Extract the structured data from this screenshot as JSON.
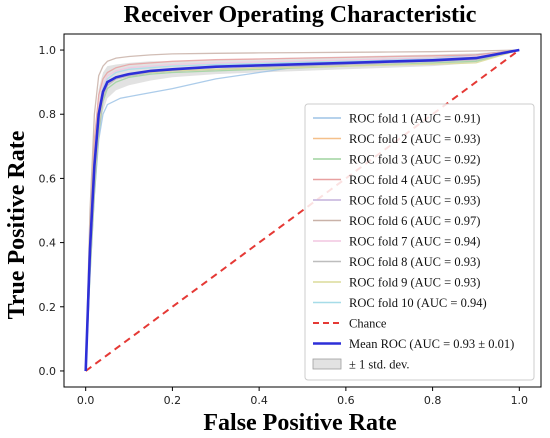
{
  "chart_data": {
    "type": "line",
    "title": "Receiver Operating Characteristic",
    "xlabel": "False Positive Rate",
    "ylabel": "True Positive Rate",
    "xlim": [
      -0.05,
      1.05
    ],
    "ylim": [
      -0.05,
      1.05
    ],
    "xticks": [
      "0.0",
      "0.2",
      "0.4",
      "0.6",
      "0.8",
      "1.0"
    ],
    "yticks": [
      "0.0",
      "0.2",
      "0.4",
      "0.6",
      "0.8",
      "1.0"
    ],
    "grid": false,
    "legend_position": "lower-right",
    "series": [
      {
        "name": "ROC fold 1 (AUC = 0.91)",
        "color": "#9ec3e6",
        "x": [
          0,
          0.01,
          0.02,
          0.03,
          0.04,
          0.05,
          0.08,
          0.12,
          0.2,
          0.3,
          0.4,
          0.5,
          0.6,
          0.7,
          0.8,
          0.9,
          1.0
        ],
        "y": [
          0,
          0.3,
          0.55,
          0.72,
          0.8,
          0.83,
          0.85,
          0.86,
          0.88,
          0.91,
          0.93,
          0.95,
          0.96,
          0.97,
          0.975,
          0.985,
          1.0
        ]
      },
      {
        "name": "ROC fold 2 (AUC = 0.93)",
        "color": "#f5c08a",
        "x": [
          0,
          0.01,
          0.02,
          0.03,
          0.04,
          0.05,
          0.07,
          0.1,
          0.15,
          0.2,
          0.3,
          0.4,
          0.5,
          0.6,
          0.7,
          0.8,
          0.9,
          1.0
        ],
        "y": [
          0,
          0.35,
          0.6,
          0.78,
          0.86,
          0.89,
          0.91,
          0.92,
          0.93,
          0.935,
          0.94,
          0.945,
          0.95,
          0.955,
          0.96,
          0.965,
          0.97,
          1.0
        ]
      },
      {
        "name": "ROC fold 3 (AUC = 0.92)",
        "color": "#9fd49f",
        "x": [
          0,
          0.01,
          0.02,
          0.03,
          0.04,
          0.05,
          0.07,
          0.1,
          0.15,
          0.2,
          0.3,
          0.4,
          0.5,
          0.6,
          0.7,
          0.8,
          0.9,
          1.0
        ],
        "y": [
          0,
          0.3,
          0.55,
          0.74,
          0.84,
          0.88,
          0.9,
          0.915,
          0.925,
          0.93,
          0.935,
          0.94,
          0.945,
          0.95,
          0.955,
          0.96,
          0.965,
          1.0
        ]
      },
      {
        "name": "ROC fold 4 (AUC = 0.95)",
        "color": "#e8a0a0",
        "x": [
          0,
          0.01,
          0.02,
          0.03,
          0.04,
          0.05,
          0.07,
          0.1,
          0.15,
          0.2,
          0.3,
          0.4,
          0.5,
          0.6,
          0.7,
          0.8,
          0.9,
          1.0
        ],
        "y": [
          0,
          0.45,
          0.72,
          0.86,
          0.91,
          0.93,
          0.945,
          0.955,
          0.96,
          0.965,
          0.97,
          0.972,
          0.975,
          0.977,
          0.98,
          0.982,
          0.985,
          1.0
        ]
      },
      {
        "name": "ROC fold 5 (AUC = 0.93)",
        "color": "#c4b1dc",
        "x": [
          0,
          0.01,
          0.02,
          0.03,
          0.04,
          0.05,
          0.07,
          0.1,
          0.15,
          0.2,
          0.3,
          0.4,
          0.5,
          0.6,
          0.7,
          0.8,
          0.9,
          1.0
        ],
        "y": [
          0,
          0.33,
          0.58,
          0.76,
          0.85,
          0.89,
          0.91,
          0.92,
          0.93,
          0.935,
          0.94,
          0.945,
          0.95,
          0.955,
          0.96,
          0.965,
          0.97,
          1.0
        ]
      },
      {
        "name": "ROC fold 6 (AUC = 0.97)",
        "color": "#c9b2a8",
        "x": [
          0,
          0.01,
          0.02,
          0.03,
          0.04,
          0.05,
          0.07,
          0.1,
          0.15,
          0.2,
          0.3,
          0.4,
          0.5,
          0.6,
          0.7,
          0.8,
          0.9,
          1.0
        ],
        "y": [
          0,
          0.5,
          0.8,
          0.92,
          0.95,
          0.965,
          0.975,
          0.98,
          0.985,
          0.988,
          0.99,
          0.991,
          0.992,
          0.993,
          0.994,
          0.995,
          0.997,
          1.0
        ]
      },
      {
        "name": "ROC fold 7 (AUC = 0.94)",
        "color": "#f2c6e0",
        "x": [
          0,
          0.01,
          0.02,
          0.03,
          0.04,
          0.05,
          0.07,
          0.1,
          0.15,
          0.2,
          0.3,
          0.4,
          0.5,
          0.6,
          0.7,
          0.8,
          0.9,
          1.0
        ],
        "y": [
          0,
          0.4,
          0.66,
          0.82,
          0.89,
          0.92,
          0.935,
          0.945,
          0.95,
          0.955,
          0.96,
          0.963,
          0.966,
          0.969,
          0.972,
          0.975,
          0.98,
          1.0
        ]
      },
      {
        "name": "ROC fold 8 (AUC = 0.93)",
        "color": "#bdbdbd",
        "x": [
          0,
          0.01,
          0.02,
          0.03,
          0.04,
          0.05,
          0.07,
          0.1,
          0.15,
          0.2,
          0.3,
          0.4,
          0.5,
          0.6,
          0.7,
          0.8,
          0.9,
          1.0
        ],
        "y": [
          0,
          0.32,
          0.57,
          0.75,
          0.85,
          0.89,
          0.91,
          0.92,
          0.93,
          0.935,
          0.94,
          0.945,
          0.95,
          0.955,
          0.96,
          0.965,
          0.97,
          1.0
        ]
      },
      {
        "name": "ROC fold 9 (AUC = 0.93)",
        "color": "#dcdc9a",
        "x": [
          0,
          0.01,
          0.02,
          0.03,
          0.04,
          0.05,
          0.07,
          0.1,
          0.15,
          0.2,
          0.3,
          0.4,
          0.5,
          0.6,
          0.7,
          0.8,
          0.9,
          1.0
        ],
        "y": [
          0,
          0.34,
          0.6,
          0.77,
          0.86,
          0.9,
          0.915,
          0.925,
          0.93,
          0.935,
          0.94,
          0.943,
          0.946,
          0.95,
          0.953,
          0.956,
          0.96,
          1.0
        ]
      },
      {
        "name": "ROC fold 10 (AUC = 0.94)",
        "color": "#a6dce8",
        "x": [
          0,
          0.01,
          0.02,
          0.03,
          0.04,
          0.05,
          0.07,
          0.1,
          0.15,
          0.2,
          0.3,
          0.4,
          0.5,
          0.6,
          0.7,
          0.8,
          0.9,
          1.0
        ],
        "y": [
          0,
          0.38,
          0.64,
          0.8,
          0.88,
          0.91,
          0.93,
          0.94,
          0.945,
          0.95,
          0.955,
          0.958,
          0.962,
          0.965,
          0.968,
          0.972,
          0.977,
          1.0
        ]
      }
    ],
    "chance": {
      "name": "Chance",
      "color": "#e53935",
      "x": [
        0,
        1
      ],
      "y": [
        0,
        1
      ]
    },
    "mean": {
      "name": "Mean ROC (AUC = 0.93 ± 0.01)",
      "color": "#2d2fd8",
      "x": [
        0,
        0.01,
        0.02,
        0.03,
        0.04,
        0.05,
        0.07,
        0.1,
        0.15,
        0.2,
        0.3,
        0.4,
        0.5,
        0.6,
        0.7,
        0.8,
        0.9,
        1.0
      ],
      "y": [
        0,
        0.38,
        0.64,
        0.8,
        0.87,
        0.9,
        0.915,
        0.925,
        0.935,
        0.94,
        0.948,
        0.952,
        0.956,
        0.96,
        0.964,
        0.968,
        0.975,
        1.0
      ]
    },
    "std_band": {
      "name": "± 1 std. dev.",
      "color": "#9e9e9e",
      "x": [
        0,
        0.01,
        0.02,
        0.03,
        0.04,
        0.05,
        0.07,
        0.1,
        0.15,
        0.2,
        0.3,
        0.4,
        0.5,
        0.6,
        0.7,
        0.8,
        0.9,
        1.0
      ],
      "lower": [
        0,
        0.3,
        0.55,
        0.72,
        0.81,
        0.85,
        0.875,
        0.89,
        0.905,
        0.915,
        0.925,
        0.93,
        0.935,
        0.94,
        0.945,
        0.95,
        0.96,
        1.0
      ],
      "upper": [
        0,
        0.46,
        0.73,
        0.88,
        0.93,
        0.95,
        0.955,
        0.96,
        0.965,
        0.965,
        0.971,
        0.974,
        0.977,
        0.98,
        0.983,
        0.986,
        0.99,
        1.0
      ]
    }
  }
}
